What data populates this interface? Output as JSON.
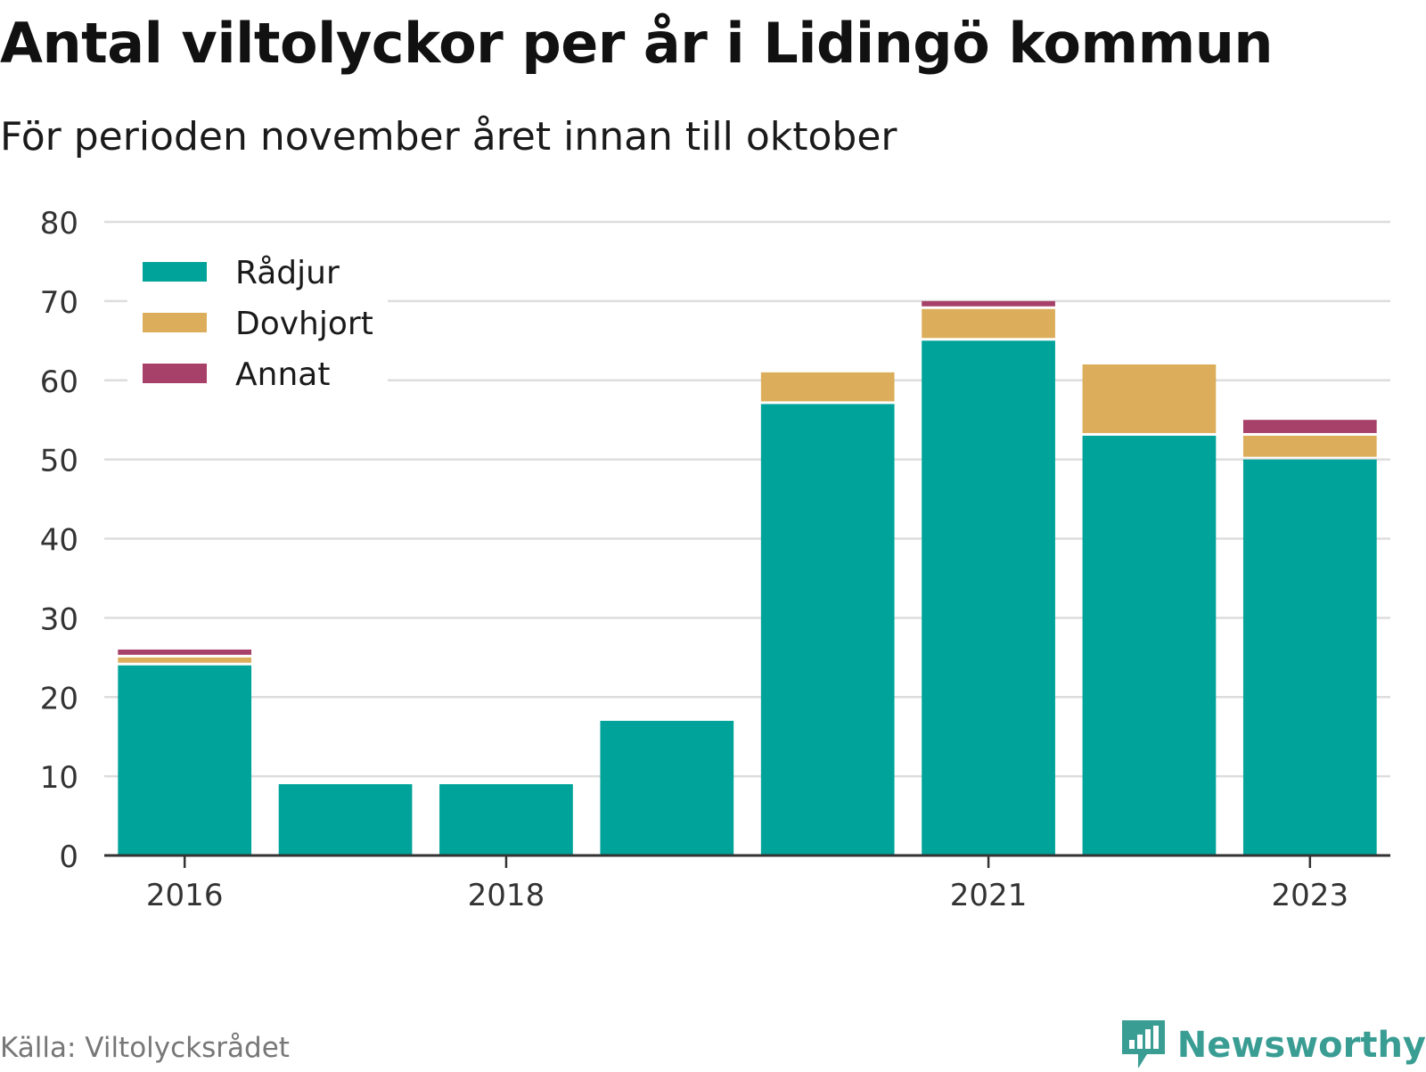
{
  "title": "Antal viltolyckor per år i Lidingö kommun",
  "subtitle": "För perioden november året innan till oktober",
  "source": "Källa: Viltolycksrådet",
  "brand": "Newsworthy",
  "colors": {
    "Rådjur": "#00a39a",
    "Dovhjort": "#dcae5c",
    "Annat": "#a8416a",
    "grid": "#dddddd",
    "axis": "#333333",
    "brand": "#3a9d93"
  },
  "chart_data": {
    "type": "bar",
    "stacked": true,
    "categories": [
      "2016",
      "2017",
      "2018",
      "2019",
      "2020",
      "2021",
      "2022",
      "2023"
    ],
    "x_tick_labels": [
      "2016",
      "",
      "2018",
      "",
      "",
      "2021",
      "",
      "2023"
    ],
    "series": [
      {
        "name": "Rådjur",
        "values": [
          24,
          9,
          9,
          17,
          57,
          65,
          53,
          50
        ]
      },
      {
        "name": "Dovhjort",
        "values": [
          1,
          0,
          0,
          0,
          4,
          4,
          9,
          3
        ]
      },
      {
        "name": "Annat",
        "values": [
          1,
          0,
          0,
          0,
          0,
          1,
          0,
          2
        ]
      }
    ],
    "ylim": [
      0,
      80
    ],
    "yticks": [
      0,
      10,
      20,
      30,
      40,
      50,
      60,
      70,
      80
    ],
    "grid": true,
    "legend_position": "top-left",
    "xlabel": "",
    "ylabel": ""
  }
}
